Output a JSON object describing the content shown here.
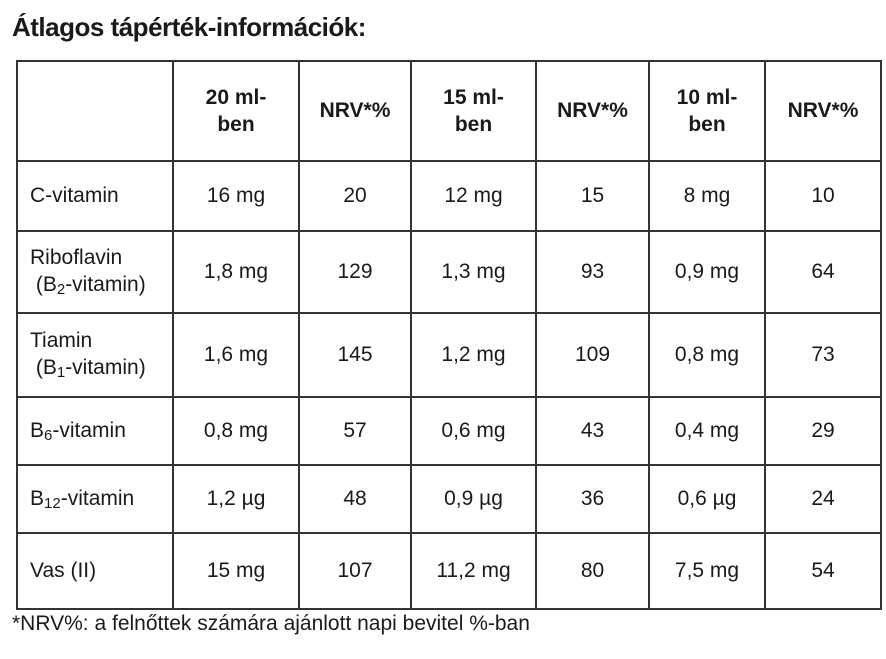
{
  "title": "Átlagos tápérték-információk:",
  "table": {
    "header": [
      [],
      [
        "20 ml-",
        "ben"
      ],
      [
        "NRV*%"
      ],
      [
        "15 ml-",
        "ben"
      ],
      [
        "NRV*%"
      ],
      [
        "10 ml-",
        "ben"
      ],
      [
        "NRV*%"
      ]
    ],
    "rows": [
      {
        "label": {
          "pre": "C-vitamin"
        },
        "cells": [
          "16 mg",
          20,
          "12 mg",
          15,
          "8 mg",
          10
        ]
      },
      {
        "label": {
          "main": "Riboflavin",
          "pre": "(B",
          "sub": "2",
          "post": "-vitamin)"
        },
        "cells": [
          "1,8 mg",
          129,
          "1,3 mg",
          93,
          "0,9 mg",
          64
        ]
      },
      {
        "label": {
          "main": "Tiamin",
          "pre": "(B",
          "sub": "1",
          "post": "-vitamin)"
        },
        "cells": [
          "1,6 mg",
          145,
          "1,2 mg",
          109,
          "0,8 mg",
          73
        ]
      },
      {
        "label": {
          "pre": "B",
          "sub": "6",
          "post": "-vitamin"
        },
        "cells": [
          "0,8 mg",
          57,
          "0,6 mg",
          43,
          "0,4 mg",
          29
        ]
      },
      {
        "label": {
          "pre": "B",
          "sub": "12",
          "post": "-vitamin"
        },
        "cells": [
          "1,2 µg",
          48,
          "0,9 µg",
          36,
          "0,6 µg",
          24
        ]
      },
      {
        "label": {
          "pre": "Vas (II)"
        },
        "cells": [
          "15 mg",
          107,
          "11,2 mg",
          80,
          "7,5 mg",
          54
        ]
      }
    ]
  },
  "footnote": "*NRV%: a felnőttek számára ajánlott napi bevitel %-ban"
}
